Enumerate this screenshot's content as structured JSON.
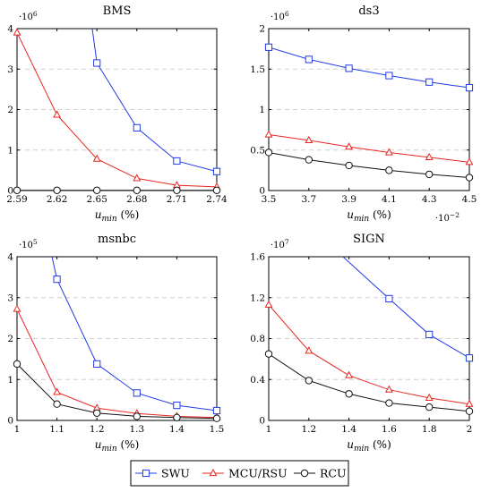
{
  "colors": {
    "SWU": "#1f3be8",
    "MCU_RSU": "#e8261f",
    "RCU": "#111111"
  },
  "legend": [
    {
      "key": "SWU",
      "label": "SWU",
      "color": "#1f3be8",
      "marker": "square"
    },
    {
      "key": "MCU_RSU",
      "label": "MCU/RSU",
      "color": "#e8261f",
      "marker": "triangle"
    },
    {
      "key": "RCU",
      "label": "RCU",
      "color": "#111111",
      "marker": "circle"
    }
  ],
  "chart_data": [
    {
      "type": "line",
      "title": "BMS",
      "xlabel_main": "u",
      "xlabel_sub": "min",
      "xlabel_rest": " (%)",
      "y_multiplier_base": "·10",
      "y_multiplier_exp": "6",
      "xlim": [
        2.59,
        2.74
      ],
      "ylim": [
        0,
        4
      ],
      "x_ticks": [
        2.59,
        2.62,
        2.65,
        2.68,
        2.71,
        2.74
      ],
      "x_tick_labels": [
        "2.59",
        "2.62",
        "2.65",
        "2.68",
        "2.71",
        "2.74"
      ],
      "y_ticks": [
        0,
        1,
        2,
        3,
        4
      ],
      "y_tick_labels": [
        "0",
        "1",
        "2",
        "3",
        "4"
      ],
      "x_scale_label": "",
      "series": [
        {
          "name": "SWU",
          "key": "SWU",
          "marker": "square",
          "x": [
            2.65,
            2.68,
            2.71,
            2.74
          ],
          "y": [
            3.15,
            1.55,
            0.73,
            0.47
          ],
          "line_from": [
            2.6465,
            4.0
          ]
        },
        {
          "name": "MCU/RSU",
          "key": "MCU_RSU",
          "marker": "triangle",
          "x": [
            2.59,
            2.62,
            2.65,
            2.68,
            2.71,
            2.74
          ],
          "y": [
            3.9,
            1.87,
            0.78,
            0.3,
            0.13,
            0.09
          ]
        },
        {
          "name": "RCU",
          "key": "RCU",
          "marker": "circle",
          "x": [
            2.59,
            2.62,
            2.65,
            2.68,
            2.71,
            2.74
          ],
          "y": [
            0.005,
            0.005,
            0.005,
            0.005,
            0.005,
            0.005
          ]
        }
      ]
    },
    {
      "type": "line",
      "title": "ds3",
      "xlabel_main": "u",
      "xlabel_sub": "min",
      "xlabel_rest": " (%)",
      "y_multiplier_base": "·10",
      "y_multiplier_exp": "6",
      "xlim": [
        3.5,
        4.5
      ],
      "ylim": [
        0,
        2
      ],
      "x_ticks": [
        3.5,
        3.7,
        3.9,
        4.1,
        4.3,
        4.5
      ],
      "x_tick_labels": [
        "3.5",
        "3.7",
        "3.9",
        "4.1",
        "4.3",
        "4.5"
      ],
      "y_ticks": [
        0,
        0.5,
        1,
        1.5,
        2
      ],
      "y_tick_labels": [
        "0",
        "0.5",
        "1",
        "1.5",
        "2"
      ],
      "x_scale_base": "·10",
      "x_scale_exp": "−2",
      "series": [
        {
          "name": "SWU",
          "key": "SWU",
          "marker": "square",
          "x": [
            3.5,
            3.7,
            3.9,
            4.1,
            4.3,
            4.5
          ],
          "y": [
            1.77,
            1.62,
            1.51,
            1.42,
            1.34,
            1.27
          ]
        },
        {
          "name": "MCU/RSU",
          "key": "MCU_RSU",
          "marker": "triangle",
          "x": [
            3.5,
            3.7,
            3.9,
            4.1,
            4.3,
            4.5
          ],
          "y": [
            0.69,
            0.62,
            0.54,
            0.47,
            0.41,
            0.35
          ]
        },
        {
          "name": "RCU",
          "key": "RCU",
          "marker": "circle",
          "x": [
            3.5,
            3.7,
            3.9,
            4.1,
            4.3,
            4.5
          ],
          "y": [
            0.47,
            0.38,
            0.31,
            0.25,
            0.2,
            0.16
          ]
        }
      ]
    },
    {
      "type": "line",
      "title": "msnbc",
      "xlabel_main": "u",
      "xlabel_sub": "min",
      "xlabel_rest": " (%)",
      "y_multiplier_base": "·10",
      "y_multiplier_exp": "5",
      "xlim": [
        1,
        1.5
      ],
      "ylim": [
        0,
        4
      ],
      "x_ticks": [
        1,
        1.1,
        1.2,
        1.3,
        1.4,
        1.5
      ],
      "x_tick_labels": [
        "1",
        "1.1",
        "1.2",
        "1.3",
        "1.4",
        "1.5"
      ],
      "y_ticks": [
        0,
        1,
        2,
        3,
        4
      ],
      "y_tick_labels": [
        "0",
        "1",
        "2",
        "3",
        "4"
      ],
      "series": [
        {
          "name": "SWU",
          "key": "SWU",
          "marker": "square",
          "x": [
            1.1,
            1.2,
            1.3,
            1.4,
            1.5
          ],
          "y": [
            3.45,
            1.38,
            0.67,
            0.37,
            0.24
          ],
          "line_from": [
            1.0875,
            4.0
          ]
        },
        {
          "name": "MCU/RSU",
          "key": "MCU_RSU",
          "marker": "triangle",
          "x": [
            1,
            1.1,
            1.2,
            1.3,
            1.4,
            1.5
          ],
          "y": [
            2.72,
            0.69,
            0.3,
            0.17,
            0.1,
            0.07
          ]
        },
        {
          "name": "RCU",
          "key": "RCU",
          "marker": "circle",
          "x": [
            1,
            1.1,
            1.2,
            1.3,
            1.4,
            1.5
          ],
          "y": [
            1.38,
            0.4,
            0.18,
            0.1,
            0.07,
            0.05
          ]
        }
      ]
    },
    {
      "type": "line",
      "title": "SIGN",
      "xlabel_main": "u",
      "xlabel_sub": "min",
      "xlabel_rest": " (%)",
      "y_multiplier_base": "·10",
      "y_multiplier_exp": "7",
      "xlim": [
        1,
        2
      ],
      "ylim": [
        0,
        1.6
      ],
      "x_ticks": [
        1,
        1.2,
        1.4,
        1.6,
        1.8,
        2
      ],
      "x_tick_labels": [
        "1",
        "1.2",
        "1.4",
        "1.6",
        "1.8",
        "2"
      ],
      "y_ticks": [
        0,
        0.4,
        0.8,
        1.2,
        1.6
      ],
      "y_tick_labels": [
        "0",
        "0.4",
        "0.8",
        "1.2",
        "1.6"
      ],
      "series": [
        {
          "name": "SWU",
          "key": "SWU",
          "marker": "square",
          "x": [
            1.6,
            1.8,
            2
          ],
          "y": [
            1.19,
            0.84,
            0.61
          ],
          "line_from": [
            1.37,
            1.6
          ]
        },
        {
          "name": "MCU/RSU",
          "key": "MCU_RSU",
          "marker": "triangle",
          "x": [
            1,
            1.2,
            1.4,
            1.6,
            1.8,
            2
          ],
          "y": [
            1.13,
            0.68,
            0.44,
            0.3,
            0.22,
            0.16
          ]
        },
        {
          "name": "RCU",
          "key": "RCU",
          "marker": "circle",
          "x": [
            1,
            1.2,
            1.4,
            1.6,
            1.8,
            2
          ],
          "y": [
            0.65,
            0.39,
            0.26,
            0.17,
            0.13,
            0.09
          ]
        }
      ]
    }
  ]
}
